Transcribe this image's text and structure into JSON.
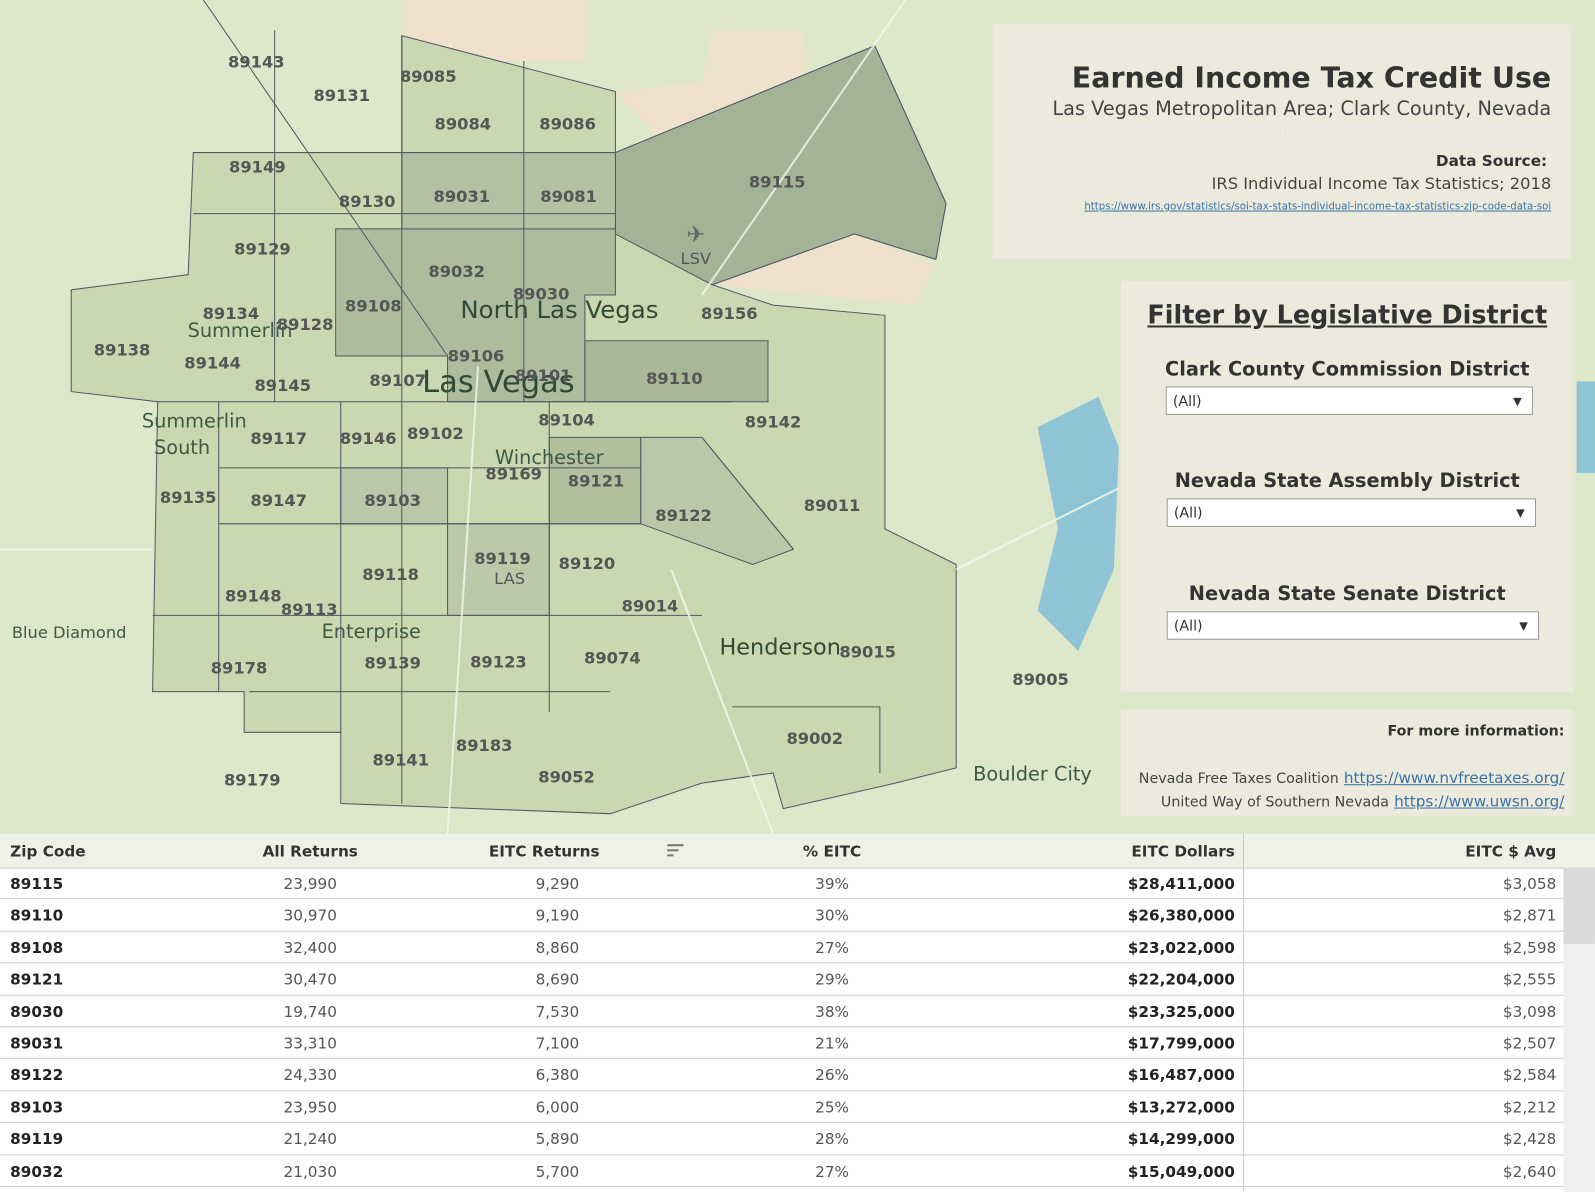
{
  "header": {
    "title": "Earned Income Tax Credit Use",
    "subtitle": "Las Vegas Metropolitan Area; Clark County, Nevada",
    "source_label": "Data Source:",
    "source": "IRS Individual Income Tax Statistics; 2018",
    "source_url": "https://www.irs.gov/statistics/soi-tax-stats-individual-income-tax-statistics-zip-code-data-soi"
  },
  "filters": {
    "title": "Filter by Legislative District",
    "items": [
      {
        "label": "Clark County Commission District",
        "value": "(All)"
      },
      {
        "label": "Nevada State Assembly District",
        "value": "(All)"
      },
      {
        "label": "Nevada State Senate District",
        "value": "(All)"
      }
    ]
  },
  "info": {
    "title": "For more information:",
    "links": [
      {
        "name": "Nevada Free Taxes Coalition",
        "url": "https://www.nvfreetaxes.org/"
      },
      {
        "name": "United Way of Southern Nevada",
        "url": "https://www.uwsn.org/"
      }
    ]
  },
  "map": {
    "places": [
      "North Las Vegas",
      "Las Vegas",
      "Summerlin",
      "Summerlin",
      "South",
      "Winchester",
      "Enterprise",
      "Henderson",
      "Boulder City",
      "Blue Diamond",
      "LSV",
      "LAS",
      "Muddy Mountains",
      "Wilderness Area"
    ],
    "zip_labels": [
      "89143",
      "89131",
      "89085",
      "89084",
      "89086",
      "89149",
      "89130",
      "89031",
      "89081",
      "89115",
      "89129",
      "89032",
      "89030",
      "89134",
      "89128",
      "89108",
      "89156",
      "89138",
      "89144",
      "89106",
      "89101",
      "89110",
      "89145",
      "89107",
      "89104",
      "89142",
      "89117",
      "89146",
      "89102",
      "89169",
      "89121",
      "89135",
      "89147",
      "89103",
      "89122",
      "89011",
      "89119",
      "89120",
      "89118",
      "89148",
      "89113",
      "89014",
      "89015",
      "89005",
      "89178",
      "89139",
      "89123",
      "89074",
      "89002",
      "89141",
      "89183",
      "89179",
      "89052"
    ]
  },
  "table": {
    "columns": [
      "Zip Code",
      "All Returns",
      "EITC Returns",
      "% EITC",
      "EITC Dollars",
      "EITC $ Avg"
    ],
    "rows": [
      [
        "89115",
        "23,990",
        "9,290",
        "39%",
        "$28,411,000",
        "$3,058"
      ],
      [
        "89110",
        "30,970",
        "9,190",
        "30%",
        "$26,380,000",
        "$2,871"
      ],
      [
        "89108",
        "32,400",
        "8,860",
        "27%",
        "$23,022,000",
        "$2,598"
      ],
      [
        "89121",
        "30,470",
        "8,690",
        "29%",
        "$22,204,000",
        "$2,555"
      ],
      [
        "89030",
        "19,740",
        "7,530",
        "38%",
        "$23,325,000",
        "$3,098"
      ],
      [
        "89031",
        "33,310",
        "7,100",
        "21%",
        "$17,799,000",
        "$2,507"
      ],
      [
        "89122",
        "24,330",
        "6,380",
        "26%",
        "$16,487,000",
        "$2,584"
      ],
      [
        "89103",
        "23,950",
        "6,000",
        "25%",
        "$13,272,000",
        "$2,212"
      ],
      [
        "89119",
        "21,240",
        "5,890",
        "28%",
        "$14,299,000",
        "$2,428"
      ],
      [
        "89032",
        "21,030",
        "5,700",
        "27%",
        "$15,049,000",
        "$2,640"
      ]
    ]
  }
}
